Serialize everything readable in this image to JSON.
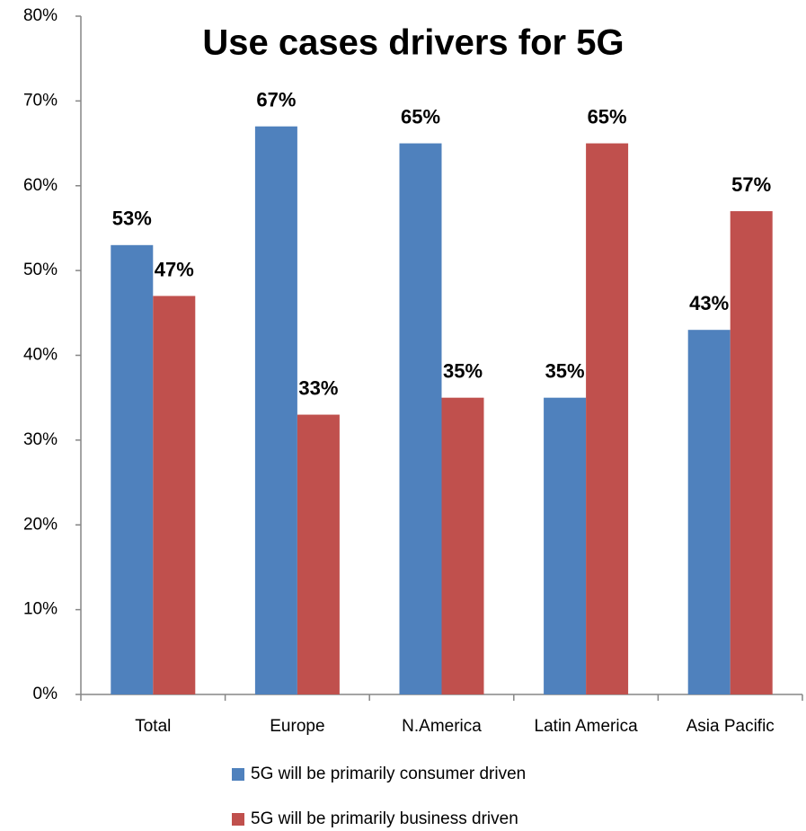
{
  "chart_data": {
    "type": "bar",
    "title": "Use cases drivers for 5G",
    "categories": [
      "Total",
      "Europe",
      "N.America",
      "Latin America",
      "Asia Pacific"
    ],
    "series": [
      {
        "name": "5G will be primarily consumer driven",
        "color": "#4f81bd",
        "values": [
          53,
          67,
          65,
          35,
          43
        ],
        "value_labels": [
          "53%",
          "67%",
          "65%",
          "35%",
          "43%"
        ]
      },
      {
        "name": "5G will be primarily business driven",
        "color": "#c0504d",
        "values": [
          47,
          33,
          35,
          65,
          57
        ],
        "value_labels": [
          "47%",
          "33%",
          "35%",
          "65%",
          "57%"
        ]
      }
    ],
    "ylim": [
      0,
      80
    ],
    "yticks": [
      {
        "value": 0,
        "label": "0%"
      },
      {
        "value": 10,
        "label": "10%"
      },
      {
        "value": 20,
        "label": "20%"
      },
      {
        "value": 30,
        "label": "30%"
      },
      {
        "value": 40,
        "label": "40%"
      },
      {
        "value": 50,
        "label": "50%"
      },
      {
        "value": 60,
        "label": "60%"
      },
      {
        "value": 70,
        "label": "70%"
      },
      {
        "value": 80,
        "label": "80%"
      }
    ],
    "legend": "bottom",
    "grid": false
  }
}
